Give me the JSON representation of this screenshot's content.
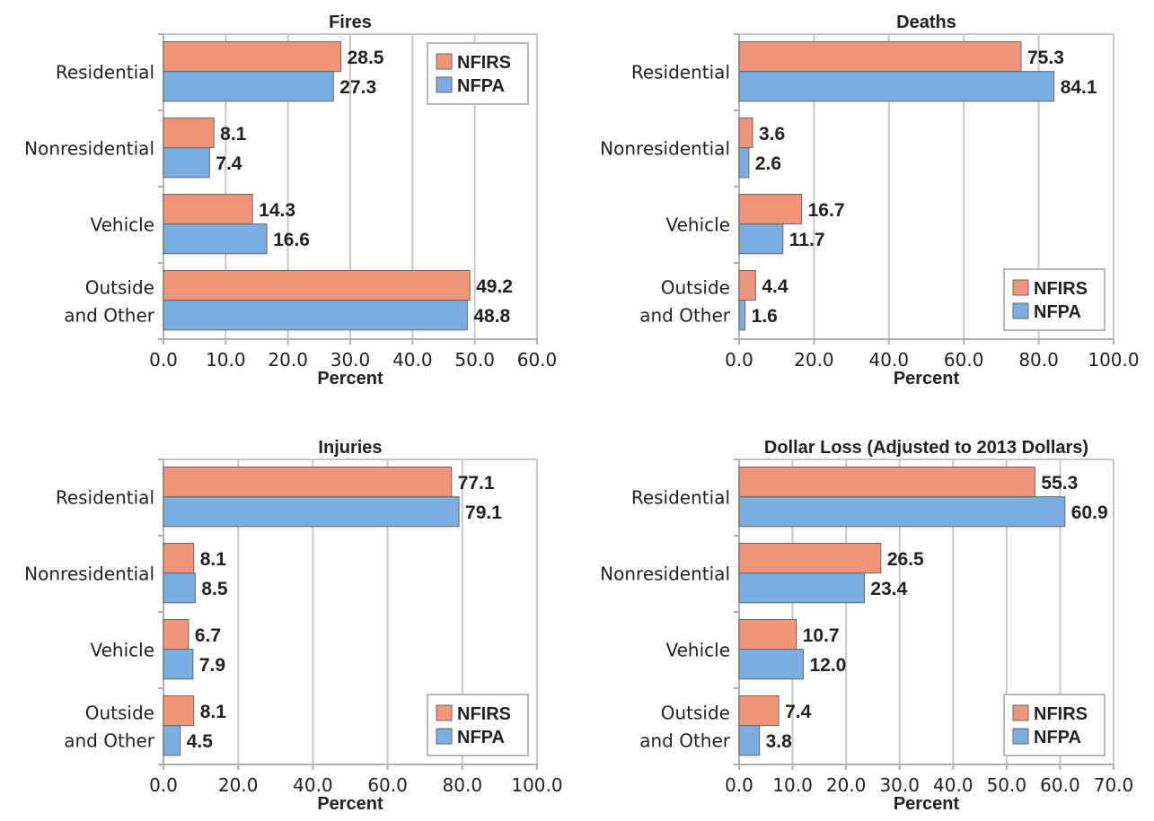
{
  "legend": [
    {
      "name": "NFIRS",
      "color": "#f0957a"
    },
    {
      "name": "NFPA",
      "color": "#7aaee0"
    }
  ],
  "colors": {
    "grid": "#c8c8c8",
    "bar_stroke": "#666666",
    "text": "#222222"
  },
  "chart_data": [
    {
      "type": "bar",
      "orientation": "horizontal",
      "title": "Fires",
      "xlabel": "Percent",
      "categories": [
        [
          "Residential"
        ],
        [
          "Nonresidential"
        ],
        [
          "Vehicle"
        ],
        [
          "Outside",
          "and Other"
        ]
      ],
      "xlim": [
        0,
        60
      ],
      "ticks": [
        "0.0",
        "10.0",
        "20.0",
        "30.0",
        "40.0",
        "50.0",
        "60.0"
      ],
      "tick_values": [
        0,
        10,
        20,
        30,
        40,
        50,
        60
      ],
      "legend_position": "top-right",
      "series": [
        {
          "name": "NFIRS",
          "values": [
            28.5,
            8.1,
            14.3,
            49.2
          ]
        },
        {
          "name": "NFPA",
          "values": [
            27.3,
            7.4,
            16.6,
            48.8
          ]
        }
      ]
    },
    {
      "type": "bar",
      "orientation": "horizontal",
      "title": "Deaths",
      "xlabel": "Percent",
      "categories": [
        [
          "Residential"
        ],
        [
          "Nonresidential"
        ],
        [
          "Vehicle"
        ],
        [
          "Outside",
          "and Other"
        ]
      ],
      "xlim": [
        0,
        100
      ],
      "ticks": [
        "0.0",
        "20.0",
        "40.0",
        "60.0",
        "80.0",
        "100.0"
      ],
      "tick_values": [
        0,
        20,
        40,
        60,
        80,
        100
      ],
      "legend_position": "bottom-right",
      "series": [
        {
          "name": "NFIRS",
          "values": [
            75.3,
            3.6,
            16.7,
            4.4
          ]
        },
        {
          "name": "NFPA",
          "values": [
            84.1,
            2.6,
            11.7,
            1.6
          ]
        }
      ]
    },
    {
      "type": "bar",
      "orientation": "horizontal",
      "title": "Injuries",
      "xlabel": "Percent",
      "categories": [
        [
          "Residential"
        ],
        [
          "Nonresidential"
        ],
        [
          "Vehicle"
        ],
        [
          "Outside",
          "and Other"
        ]
      ],
      "xlim": [
        0,
        100
      ],
      "ticks": [
        "0.0",
        "20.0",
        "40.0",
        "60.0",
        "80.0",
        "100.0"
      ],
      "tick_values": [
        0,
        20,
        40,
        60,
        80,
        100
      ],
      "legend_position": "bottom-right",
      "series": [
        {
          "name": "NFIRS",
          "values": [
            77.1,
            8.1,
            6.7,
            8.1
          ]
        },
        {
          "name": "NFPA",
          "values": [
            79.1,
            8.5,
            7.9,
            4.5
          ]
        }
      ]
    },
    {
      "type": "bar",
      "orientation": "horizontal",
      "title": "Dollar Loss (Adjusted to 2013 Dollars)",
      "xlabel": "Percent",
      "categories": [
        [
          "Residential"
        ],
        [
          "Nonresidential"
        ],
        [
          "Vehicle"
        ],
        [
          "Outside",
          "and Other"
        ]
      ],
      "xlim": [
        0,
        70
      ],
      "ticks": [
        "0.0",
        "10.0",
        "20.0",
        "30.0",
        "40.0",
        "50.0",
        "60.0",
        "70.0"
      ],
      "tick_values": [
        0,
        10,
        20,
        30,
        40,
        50,
        60,
        70
      ],
      "legend_position": "bottom-right",
      "series": [
        {
          "name": "NFIRS",
          "values": [
            55.3,
            26.5,
            10.7,
            7.4
          ]
        },
        {
          "name": "NFPA",
          "values": [
            60.9,
            23.4,
            12.0,
            3.8
          ]
        }
      ]
    }
  ]
}
